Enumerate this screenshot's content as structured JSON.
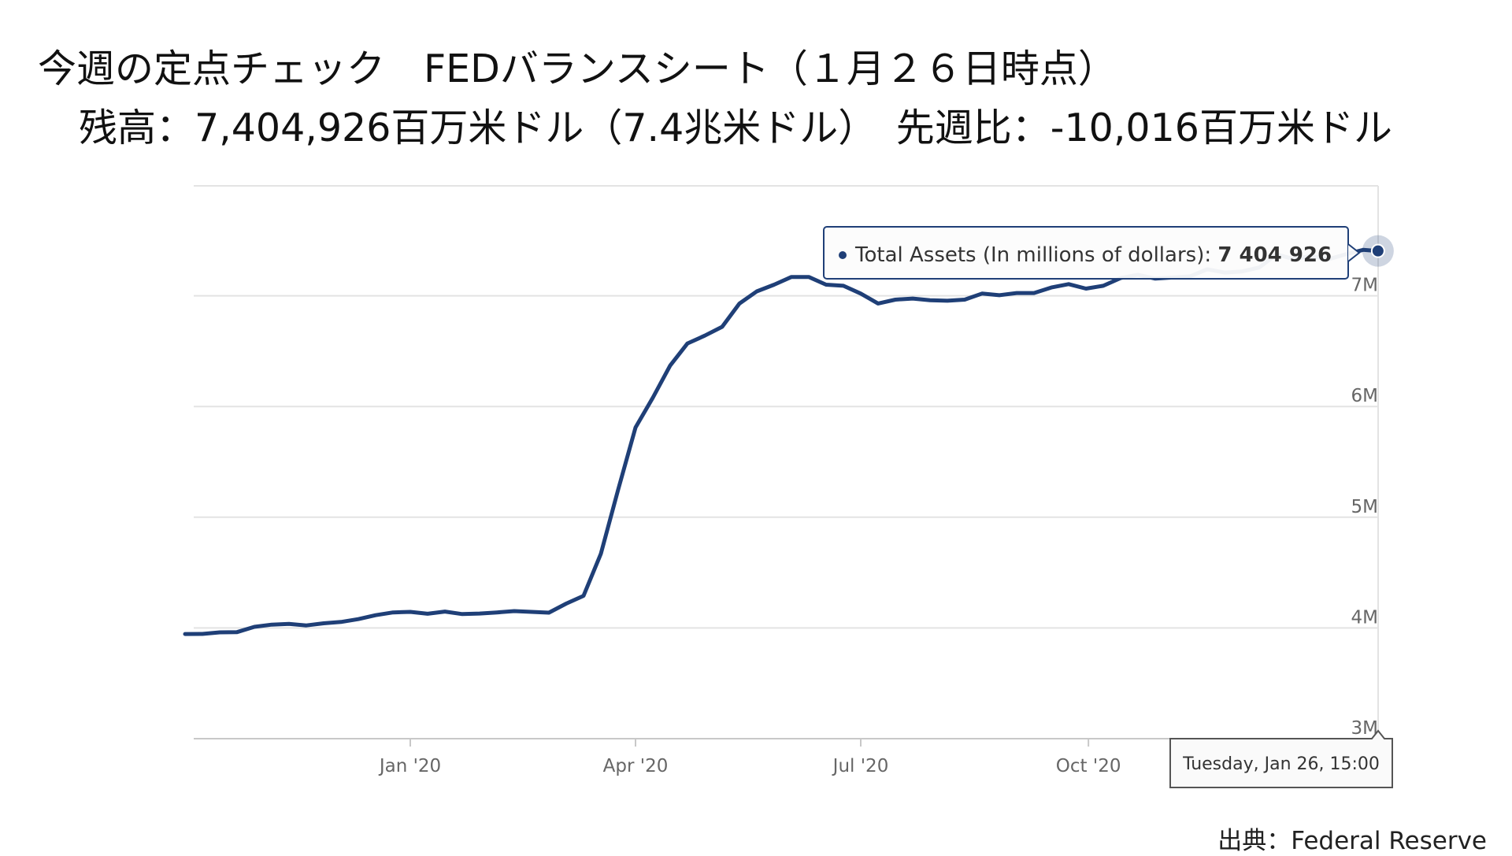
{
  "header": {
    "line1": "今週の定点チェック　FEDバランスシート（１月２６日時点）",
    "line2": "残高：7,404,926百万米ドル（7.4兆米ドル）　先週比：-10,016百万米ドル"
  },
  "source": "出典：Federal Reserve",
  "tooltip": {
    "series_label": "Total Assets (In millions of dollars): ",
    "value_label": "7 404 926",
    "date_label": "Tuesday, Jan 26, 15:00"
  },
  "colors": {
    "line": "#1f3f77",
    "grid": "#e3e3e3",
    "axis_text": "#666666"
  },
  "chart_data": {
    "type": "line",
    "title": "",
    "xlabel": "",
    "ylabel": "",
    "x_tick_labels": [
      "Jan '20",
      "Apr '20",
      "Jul '20",
      "Oct '20"
    ],
    "x_tick_dates": [
      "2020-01-01",
      "2020-04-01",
      "2020-07-01",
      "2020-10-01"
    ],
    "x_range": [
      "2019-10-02",
      "2021-01-26"
    ],
    "y_tick_labels": [
      "3M",
      "4M",
      "5M",
      "6M",
      "7M"
    ],
    "y_tick_values": [
      3000000,
      4000000,
      5000000,
      6000000,
      7000000
    ],
    "ylim": [
      3000000,
      8000000
    ],
    "grid": true,
    "series": [
      {
        "name": "Total Assets (In millions of dollars)",
        "x": [
          "2019-10-02",
          "2019-10-09",
          "2019-10-16",
          "2019-10-23",
          "2019-10-30",
          "2019-11-06",
          "2019-11-13",
          "2019-11-20",
          "2019-11-27",
          "2019-12-04",
          "2019-12-11",
          "2019-12-18",
          "2019-12-25",
          "2020-01-01",
          "2020-01-08",
          "2020-01-15",
          "2020-01-22",
          "2020-01-29",
          "2020-02-05",
          "2020-02-12",
          "2020-02-19",
          "2020-02-26",
          "2020-03-04",
          "2020-03-11",
          "2020-03-18",
          "2020-03-25",
          "2020-04-01",
          "2020-04-08",
          "2020-04-15",
          "2020-04-22",
          "2020-04-29",
          "2020-05-06",
          "2020-05-13",
          "2020-05-20",
          "2020-05-27",
          "2020-06-03",
          "2020-06-10",
          "2020-06-17",
          "2020-06-24",
          "2020-07-01",
          "2020-07-08",
          "2020-07-15",
          "2020-07-22",
          "2020-07-29",
          "2020-08-05",
          "2020-08-12",
          "2020-08-19",
          "2020-08-26",
          "2020-09-02",
          "2020-09-09",
          "2020-09-16",
          "2020-09-23",
          "2020-09-30",
          "2020-10-07",
          "2020-10-14",
          "2020-10-21",
          "2020-10-28",
          "2020-11-04",
          "2020-11-11",
          "2020-11-18",
          "2020-11-25",
          "2020-12-02",
          "2020-12-09",
          "2020-12-16",
          "2020-12-23",
          "2020-12-30",
          "2021-01-06",
          "2021-01-13",
          "2021-01-20",
          "2021-01-26"
        ],
        "y": [
          3945000,
          3946000,
          3960000,
          3962000,
          4010000,
          4030000,
          4036000,
          4023000,
          4042000,
          4054000,
          4080000,
          4115000,
          4140000,
          4145000,
          4128000,
          4148000,
          4125000,
          4130000,
          4140000,
          4152000,
          4145000,
          4138000,
          4220000,
          4290000,
          4670000,
          5250000,
          5810000,
          6080000,
          6370000,
          6570000,
          6640000,
          6720000,
          6930000,
          7040000,
          7100000,
          7170000,
          7170000,
          7100000,
          7090000,
          7020000,
          6930000,
          6965000,
          6975000,
          6960000,
          6955000,
          6965000,
          7020000,
          7005000,
          7025000,
          7025000,
          7075000,
          7105000,
          7065000,
          7090000,
          7160000,
          7190000,
          7155000,
          7165000,
          7175000,
          7240000,
          7210000,
          7220000,
          7255000,
          7375000,
          7330000,
          7360000,
          7330000,
          7375000,
          7415000,
          7404926
        ]
      }
    ]
  }
}
